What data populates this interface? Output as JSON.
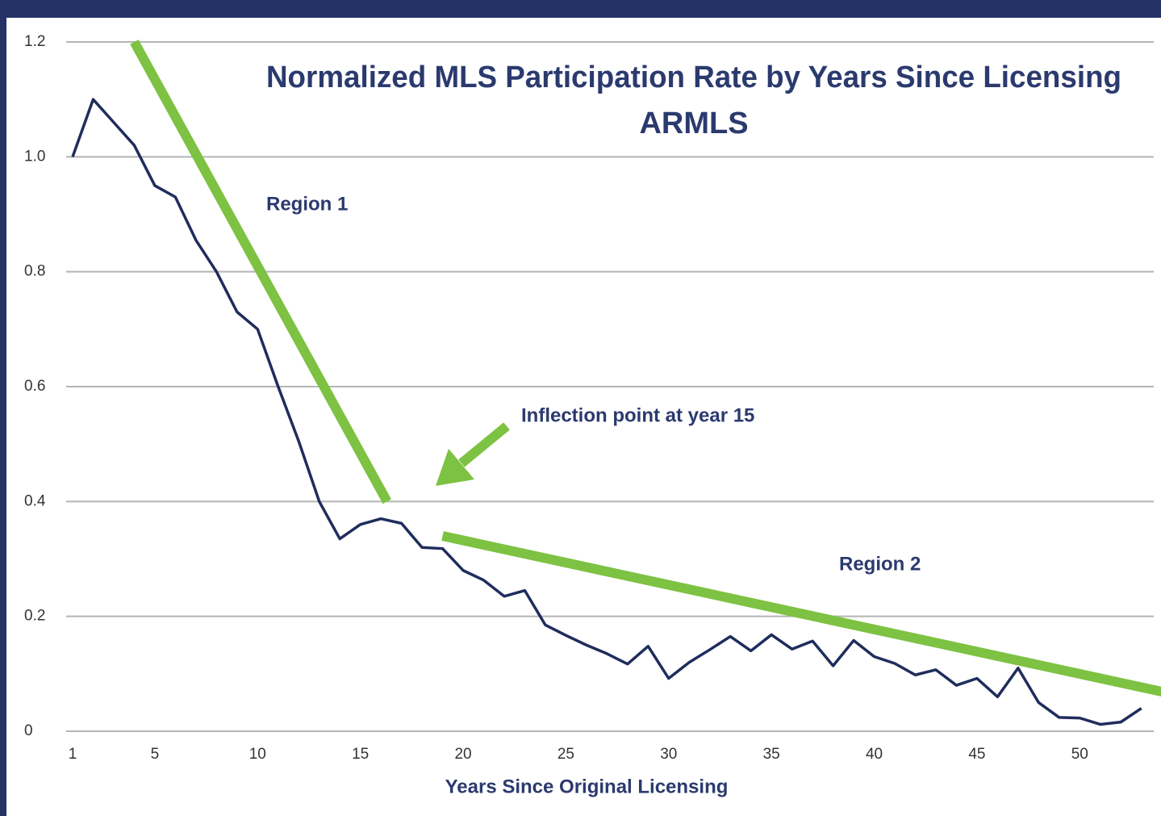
{
  "chart_data": {
    "type": "line",
    "title": "Normalized MLS Participation Rate by Years Since Licensing",
    "subtitle": "ARMLS",
    "x_label": "Years Since Original Licensing",
    "annotations": [
      "Region 1",
      "Inflection point at year 15",
      "Region 2"
    ],
    "x": [
      1,
      2,
      3,
      4,
      5,
      6,
      7,
      8,
      9,
      10,
      11,
      12,
      13,
      14,
      15,
      16,
      17,
      18,
      19,
      20,
      21,
      22,
      23,
      24,
      25,
      26,
      27,
      28,
      29,
      30,
      31,
      32,
      33,
      34,
      35,
      36,
      37,
      38,
      39,
      40,
      41,
      42,
      43,
      44,
      45,
      46,
      47,
      48,
      49,
      50,
      51,
      52,
      53
    ],
    "series": [
      {
        "color": "#1f2d5c",
        "values": [
          1.0,
          1.1,
          1.06,
          1.02,
          0.95,
          0.93,
          0.855,
          0.8,
          0.73,
          0.7,
          0.6,
          0.505,
          0.4,
          0.335,
          0.36,
          0.37,
          0.362,
          0.32,
          0.318,
          0.28,
          0.263,
          0.235,
          0.245,
          0.185,
          0.167,
          0.15,
          0.135,
          0.117,
          0.148,
          0.092,
          0.12,
          0.142,
          0.165,
          0.14,
          0.168,
          0.143,
          0.157,
          0.114,
          0.158,
          0.13,
          0.118,
          0.098,
          0.107,
          0.08,
          0.092,
          0.06,
          0.11,
          0.05,
          0.024,
          0.023,
          0.012,
          0.016,
          0.04
        ]
      }
    ],
    "trend_lines": [
      {
        "color": "#7dc242",
        "x": [
          4,
          16.3
        ],
        "values": [
          1.2,
          0.4
        ]
      },
      {
        "color": "#7dc242",
        "x": [
          19,
          54.5
        ],
        "values": [
          0.34,
          0.065
        ]
      }
    ],
    "xlim": [
      1,
      53.6
    ],
    "xticks": [
      1,
      5,
      10,
      15,
      20,
      25,
      30,
      35,
      40,
      45,
      50
    ],
    "ylim": [
      0,
      1.2
    ],
    "yticks": [
      0,
      0.2,
      0.4,
      0.6,
      0.8,
      {
        "value": 1,
        "label": "1.0"
      },
      1.2
    ],
    "grid": true
  }
}
